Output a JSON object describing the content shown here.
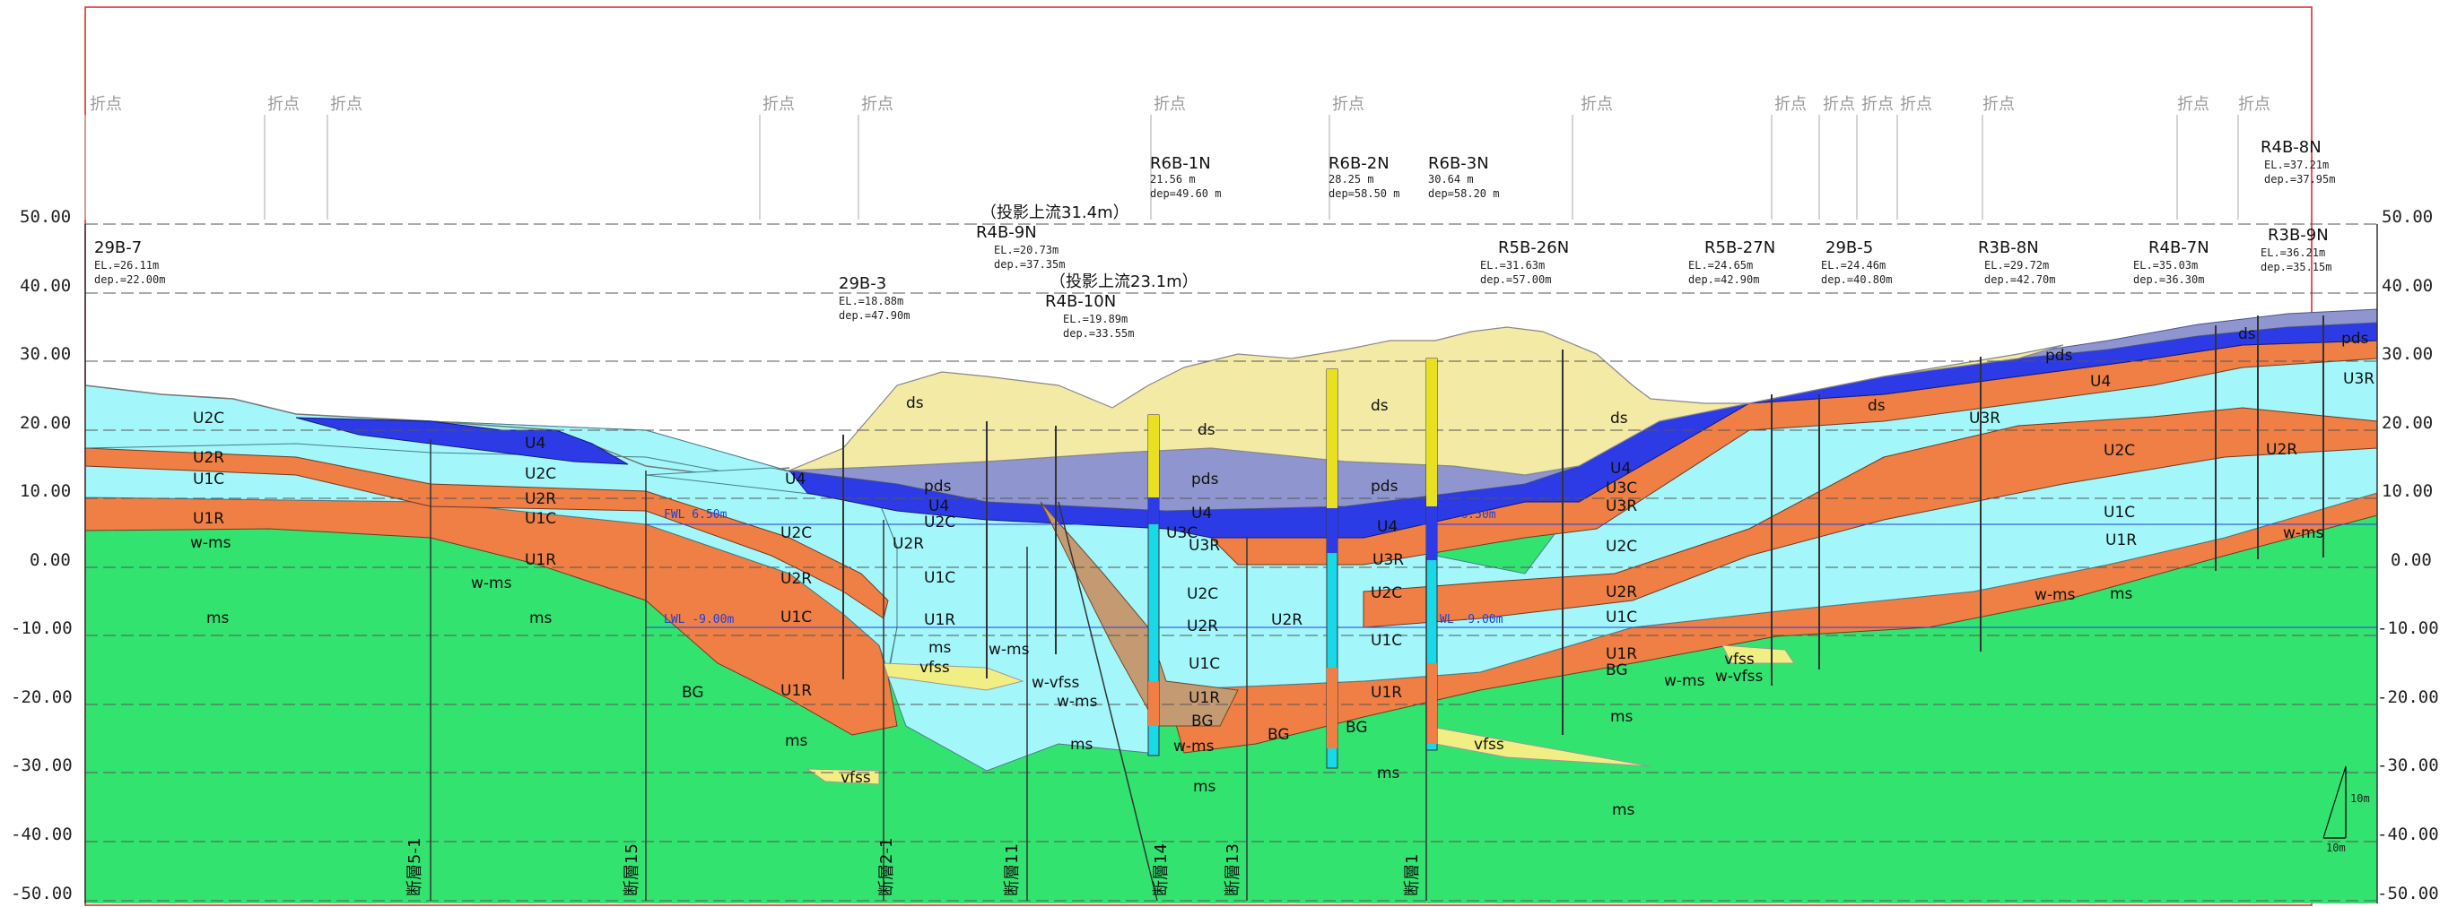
{
  "elevation_axis": {
    "unit": "",
    "labels": [
      "50.00",
      "40.00",
      "30.00",
      "20.00",
      "10.00",
      "0.00",
      "-10.00",
      "-20.00",
      "-30.00",
      "-40.00",
      "-50.00"
    ]
  },
  "bend_label": "折点",
  "water_levels": {
    "hwl_left": "FWL 6.50m",
    "lwl_left": "LWL -9.00m",
    "hwl_right": "WL 6.50m",
    "lwl_right": "WL -9.00m"
  },
  "boreholes": [
    {
      "name": "29B-7",
      "line1": "EL.=26.11m",
      "line2": "dep.=22.00m"
    },
    {
      "name": "29B-3",
      "line1": "EL.=18.88m",
      "line2": "dep.=47.90m"
    },
    {
      "name": "R4B-9N",
      "line1": "EL.=20.73m",
      "line2": "dep.=37.35m"
    },
    {
      "name": "R4B-10N",
      "line1": "EL.=19.89m",
      "line2": "dep.=33.55m"
    },
    {
      "name": "R6B-1N",
      "line1": "21.56 m",
      "line2": "dep=49.60 m"
    },
    {
      "name": "R6B-2N",
      "line1": "28.25 m",
      "line2": "dep=58.50 m"
    },
    {
      "name": "R6B-3N",
      "line1": "30.64 m",
      "line2": "dep=58.20 m"
    },
    {
      "name": "R5B-26N",
      "line1": "EL.=31.63m",
      "line2": "dep.=57.00m"
    },
    {
      "name": "R5B-27N",
      "line1": "EL.=24.65m",
      "line2": "dep.=42.90m"
    },
    {
      "name": "29B-5",
      "line1": "EL.=24.46m",
      "line2": "dep.=40.80m"
    },
    {
      "name": "R3B-8N",
      "line1": "EL.=29.72m",
      "line2": "dep.=42.70m"
    },
    {
      "name": "R4B-7N",
      "line1": "EL.=35.03m",
      "line2": "dep.=36.30m"
    },
    {
      "name": "R3B-9N",
      "line1": "EL.=36.21m",
      "line2": "dep.=35.15m"
    },
    {
      "name": "R4B-8N",
      "line1": "EL.=37.21m",
      "line2": "dep.=37.95m"
    }
  ],
  "projection_notes": [
    "（投影上流31.4m）",
    "（投影上流23.1m）"
  ],
  "faults": [
    "断層5-1",
    "断層15",
    "断層2-1",
    "断層11",
    "断層14",
    "断層13",
    "断層1"
  ],
  "layers": {
    "u2c": "U2C",
    "u2r": "U2R",
    "u1c": "U1C",
    "u1r": "U1R",
    "wms": "w-ms",
    "ms": "ms",
    "u4": "U4",
    "bg": "BG",
    "vfss": "vfss",
    "ds": "ds",
    "pds": "pds",
    "u3c": "U3C",
    "u3r": "U3R",
    "wvfss": "w-vfss"
  },
  "scale_label": "10m",
  "colors": {
    "ms": "#33e36f",
    "u1c": "#a3f7fb",
    "u2c": "#a3f7fb",
    "u1r": "#ef7f45",
    "u2r": "#ef7f45",
    "u3r": "#ef7f45",
    "u4": "#2d3be6",
    "pds": "#8f96cf",
    "ds": "#f3eaa6",
    "vfss": "#f1ef83",
    "bg": "#c49a73"
  }
}
